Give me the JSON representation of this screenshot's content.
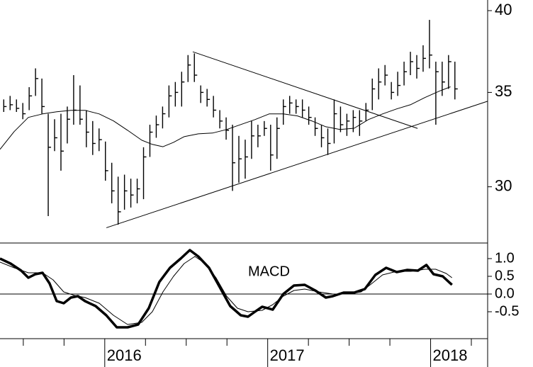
{
  "chart_data": [
    {
      "type": "ohlc",
      "log_scale": true,
      "xlim": [
        2015.357,
        2018.35
      ],
      "ylim": [
        27.4,
        40.7
      ],
      "yticks": [
        30,
        35,
        40
      ],
      "color": "#000000",
      "bars": {
        "x": [
          2015.38,
          2015.419,
          2015.458,
          2015.497,
          2015.536,
          2015.575,
          2015.614,
          2015.653,
          2015.692,
          2015.731,
          2015.77,
          2015.809,
          2015.848,
          2015.887,
          2015.926,
          2015.965,
          2016.004,
          2016.043,
          2016.082,
          2016.121,
          2016.16,
          2016.199,
          2016.238,
          2016.277,
          2016.316,
          2016.355,
          2016.394,
          2016.433,
          2016.472,
          2016.511,
          2016.55,
          2016.589,
          2016.628,
          2016.667,
          2016.706,
          2016.745,
          2016.784,
          2016.823,
          2016.862,
          2016.901,
          2016.94,
          2016.979,
          2017.018,
          2017.057,
          2017.096,
          2017.135,
          2017.174,
          2017.213,
          2017.252,
          2017.291,
          2017.33,
          2017.369,
          2017.408,
          2017.447,
          2017.486,
          2017.525,
          2017.564,
          2017.603,
          2017.642,
          2017.681,
          2017.72,
          2017.759,
          2017.798,
          2017.837,
          2017.876,
          2017.915,
          2017.954,
          2017.993,
          2018.032,
          2018.071,
          2018.11,
          2018.149
        ],
        "high": [
          34.6,
          34.8,
          34.6,
          34.4,
          35.3,
          36.4,
          35.8,
          33.8,
          33.5,
          33.8,
          34.2,
          36.0,
          35.4,
          34.0,
          33.4,
          33.0,
          32.3,
          31.2,
          30.5,
          30.6,
          30.4,
          30.4,
          32.0,
          33.2,
          33.7,
          34.2,
          35.4,
          35.6,
          36.2,
          37.2,
          37.3,
          35.4,
          35.2,
          34.8,
          34.0,
          33.6,
          33.2,
          32.6,
          32.4,
          33.4,
          33.2,
          33.4,
          33.2,
          33.6,
          34.6,
          34.8,
          34.6,
          34.6,
          34.2,
          33.6,
          33.2,
          33.0,
          34.6,
          34.2,
          33.8,
          34.0,
          34.0,
          34.4,
          35.8,
          36.4,
          36.6,
          35.6,
          36.2,
          36.8,
          37.4,
          37.2,
          37.8,
          39.4,
          36.8,
          36.8,
          37.2,
          36.8
        ],
        "low": [
          33.9,
          34.0,
          33.9,
          33.5,
          34.0,
          34.8,
          33.8,
          28.6,
          31.8,
          30.8,
          32.2,
          33.2,
          33.2,
          32.0,
          31.6,
          31.8,
          30.3,
          29.2,
          28.2,
          28.9,
          29.0,
          29.2,
          29.4,
          31.5,
          32.5,
          33.0,
          33.6,
          34.2,
          34.2,
          35.6,
          35.6,
          34.4,
          34.2,
          33.6,
          33.0,
          32.4,
          29.8,
          30.2,
          30.4,
          31.4,
          32.0,
          32.6,
          30.8,
          31.4,
          33.2,
          33.8,
          33.8,
          33.6,
          33.2,
          32.6,
          32.0,
          31.6,
          32.2,
          32.8,
          32.6,
          32.8,
          32.6,
          33.4,
          34.0,
          34.6,
          35.4,
          34.6,
          34.8,
          35.4,
          36.0,
          35.8,
          36.2,
          36.4,
          33.2,
          34.8,
          35.2,
          34.6
        ],
        "close": [
          34.2,
          34.3,
          34.1,
          33.8,
          34.8,
          35.8,
          34.2,
          32.0,
          32.5,
          31.8,
          33.5,
          34.0,
          33.5,
          32.8,
          32.2,
          32.4,
          30.8,
          29.8,
          28.8,
          29.8,
          29.6,
          29.9,
          31.5,
          32.8,
          33.2,
          33.8,
          34.8,
          35.0,
          35.6,
          36.6,
          36.0,
          35.0,
          34.6,
          34.0,
          33.4,
          32.9,
          31.2,
          31.4,
          31.5,
          32.6,
          32.6,
          33.0,
          31.6,
          33.0,
          34.2,
          34.4,
          34.2,
          34.0,
          33.6,
          33.0,
          32.5,
          32.2,
          33.8,
          33.2,
          33.4,
          33.6,
          33.4,
          34.0,
          35.2,
          35.6,
          36.0,
          35.0,
          35.4,
          36.2,
          36.8,
          36.4,
          37.0,
          37.2,
          36.2,
          35.6,
          36.8,
          35.2
        ]
      },
      "moving_average": {
        "color": "#000000",
        "x": [
          2015.357,
          2015.444,
          2015.531,
          2015.618,
          2015.705,
          2015.792,
          2015.879,
          2015.966,
          2016.053,
          2016.14,
          2016.227,
          2016.292,
          2016.357,
          2016.422,
          2016.487,
          2016.574,
          2016.661,
          2016.748,
          2016.835,
          2016.922,
          2017.009,
          2017.096,
          2017.183,
          2017.27,
          2017.357,
          2017.444,
          2017.531,
          2017.618,
          2017.705,
          2017.792,
          2017.879,
          2017.966,
          2018.053,
          2018.122
        ],
        "values": [
          31.89,
          32.83,
          33.6,
          33.79,
          33.91,
          33.99,
          33.99,
          33.79,
          33.41,
          32.9,
          32.37,
          32.15,
          32.03,
          32.26,
          32.56,
          32.71,
          32.75,
          32.94,
          33.21,
          33.48,
          33.79,
          33.79,
          33.68,
          33.41,
          33.09,
          32.94,
          33.01,
          33.48,
          33.79,
          34.07,
          34.31,
          34.71,
          35.07,
          35.32
        ]
      },
      "trendlines": [
        {
          "x": [
            2016.01,
            2018.35
          ],
          "y": [
            28.06,
            34.5
          ]
        },
        {
          "x": [
            2016.54,
            2017.92
          ],
          "y": [
            37.4,
            33.0
          ]
        }
      ]
    },
    {
      "type": "line",
      "annotation": "MACD",
      "xlim": [
        2015.357,
        2018.35
      ],
      "ylim": [
        -1.26,
        1.44
      ],
      "yticks": [
        {
          "value": -0.5,
          "label": "-0.5"
        },
        {
          "value": 0,
          "label": "0.0"
        },
        {
          "value": 0.5,
          "label": "0.5"
        },
        {
          "value": 1,
          "label": "1.0"
        }
      ],
      "xticks": [
        2016,
        2017,
        2018
      ],
      "xminorticks": [
        2015.5,
        2015.75,
        2016.25,
        2016.5,
        2016.75,
        2017.25,
        2017.5,
        2017.75,
        2018.25
      ],
      "zero_line": 0,
      "macd": {
        "color": "#000000",
        "width": 3.5,
        "x": [
          2015.357,
          2015.422,
          2015.487,
          2015.531,
          2015.574,
          2015.618,
          2015.661,
          2015.705,
          2015.748,
          2015.792,
          2015.835,
          2015.879,
          2015.944,
          2016.009,
          2016.074,
          2016.14,
          2016.205,
          2016.27,
          2016.335,
          2016.4,
          2016.466,
          2016.522,
          2016.574,
          2016.64,
          2016.705,
          2016.77,
          2016.835,
          2016.879,
          2016.922,
          2016.966,
          2017.031,
          2017.096,
          2017.161,
          2017.227,
          2017.292,
          2017.357,
          2017.4,
          2017.466,
          2017.531,
          2017.596,
          2017.661,
          2017.727,
          2017.792,
          2017.857,
          2017.922,
          2017.974,
          2018.018,
          2018.074,
          2018.131
        ],
        "values": [
          1.0,
          0.86,
          0.66,
          0.46,
          0.56,
          0.6,
          0.3,
          -0.2,
          -0.26,
          -0.1,
          -0.06,
          -0.2,
          -0.34,
          -0.6,
          -0.94,
          -0.94,
          -0.86,
          -0.4,
          0.34,
          0.74,
          1.0,
          1.24,
          1.06,
          0.74,
          0.2,
          -0.34,
          -0.6,
          -0.64,
          -0.5,
          -0.36,
          -0.44,
          0,
          0.24,
          0.26,
          0.1,
          -0.1,
          -0.06,
          0.04,
          0.04,
          0.14,
          0.54,
          0.74,
          0.62,
          0.68,
          0.66,
          0.82,
          0.56,
          0.5,
          0.26
        ]
      },
      "signal": {
        "color": "#000000",
        "width": 1,
        "x": [
          2015.357,
          2015.444,
          2015.531,
          2015.618,
          2015.683,
          2015.748,
          2015.814,
          2015.879,
          2015.966,
          2016.053,
          2016.14,
          2016.227,
          2016.292,
          2016.357,
          2016.422,
          2016.487,
          2016.553,
          2016.618,
          2016.683,
          2016.748,
          2016.814,
          2016.879,
          2016.966,
          2017.031,
          2017.096,
          2017.161,
          2017.227,
          2017.314,
          2017.4,
          2017.487,
          2017.574,
          2017.64,
          2017.705,
          2017.792,
          2017.879,
          2017.966,
          2018.031,
          2018.096,
          2018.131
        ],
        "values": [
          0.9,
          0.74,
          0.6,
          0.6,
          0.4,
          0.06,
          -0.04,
          -0.1,
          -0.26,
          -0.6,
          -0.86,
          -0.8,
          -0.5,
          0.06,
          0.5,
          0.86,
          1.06,
          0.86,
          0.46,
          -0.06,
          -0.4,
          -0.5,
          -0.46,
          -0.3,
          -0.06,
          0.1,
          0.14,
          0.06,
          0,
          0,
          0.06,
          0.3,
          0.54,
          0.64,
          0.64,
          0.7,
          0.7,
          0.58,
          0.46
        ]
      }
    }
  ]
}
